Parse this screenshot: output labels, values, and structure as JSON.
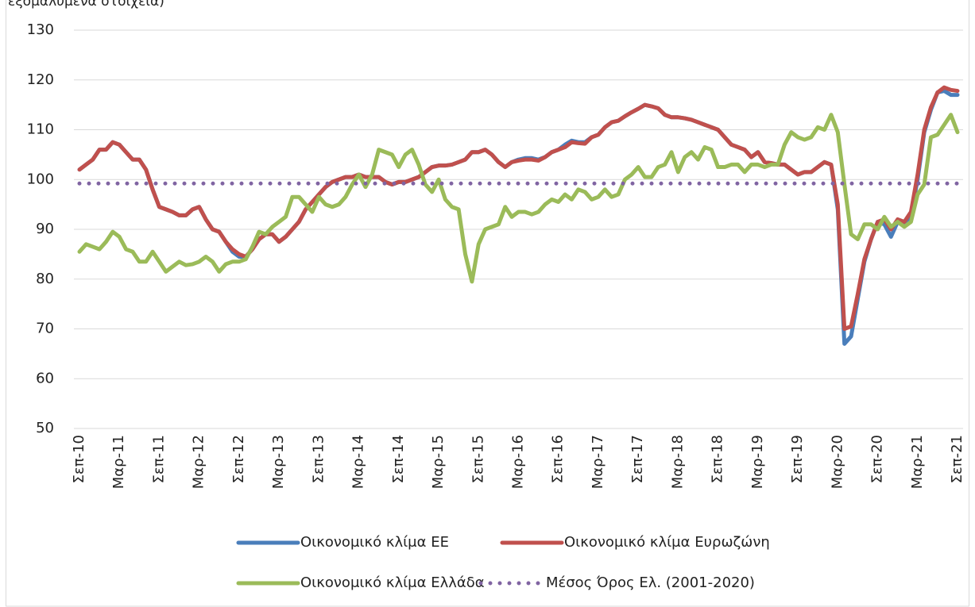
{
  "chart_data": {
    "type": "line",
    "title": "εξομαλυμένα στοιχεία)",
    "categories": [
      "Σεπ-10",
      null,
      null,
      null,
      null,
      null,
      "Μαρ-11",
      null,
      null,
      null,
      null,
      null,
      "Σεπ-11",
      null,
      null,
      null,
      null,
      null,
      "Μαρ-12",
      null,
      null,
      null,
      null,
      null,
      "Σεπ-12",
      null,
      null,
      null,
      null,
      null,
      "Μαρ-13",
      null,
      null,
      null,
      null,
      null,
      "Σεπ-13",
      null,
      null,
      null,
      null,
      null,
      "Μαρ-14",
      null,
      null,
      null,
      null,
      null,
      "Σεπ-14",
      null,
      null,
      null,
      null,
      null,
      "Μαρ-15",
      null,
      null,
      null,
      null,
      null,
      "Σεπ-15",
      null,
      null,
      null,
      null,
      null,
      "Μαρ-16",
      null,
      null,
      null,
      null,
      null,
      "Σεπ-16",
      null,
      null,
      null,
      null,
      null,
      "Μαρ-17",
      null,
      null,
      null,
      null,
      null,
      "Σεπ-17",
      null,
      null,
      null,
      null,
      null,
      "Μαρ-18",
      null,
      null,
      null,
      null,
      null,
      "Σεπ-18",
      null,
      null,
      null,
      null,
      null,
      "Μαρ-19",
      null,
      null,
      null,
      null,
      null,
      "Σεπ-19",
      null,
      null,
      null,
      null,
      null,
      "Μαρ-20",
      null,
      null,
      null,
      null,
      null,
      "Σεπ-20",
      null,
      null,
      null,
      null,
      null,
      "Μαρ-21",
      null,
      null,
      null,
      null,
      null,
      "Σεπ-21"
    ],
    "series": [
      {
        "name": "Οικονομικό κλίμα ΕΕ",
        "color": "#4a7ebb",
        "style": "solid",
        "values": [
          102,
          103,
          104,
          106,
          106,
          107.5,
          107,
          105.5,
          104,
          104,
          102,
          98,
          94.5,
          94,
          93.5,
          92.8,
          92.8,
          94,
          94.5,
          92,
          90,
          89.5,
          87.5,
          85.5,
          84.5,
          84.5,
          86,
          88,
          89,
          89,
          87.5,
          88.5,
          90,
          91.5,
          94,
          95.5,
          97,
          98.5,
          99.5,
          100,
          100.5,
          100.5,
          101,
          100.5,
          100.5,
          100.5,
          99.5,
          99,
          99.5,
          99.5,
          100,
          100.5,
          101.5,
          102.5,
          102.8,
          102.8,
          103,
          103.5,
          104,
          105.5,
          105.5,
          106,
          105,
          103.5,
          102.5,
          103.5,
          104,
          104.3,
          104.3,
          104,
          104.5,
          105.5,
          106,
          107,
          107.8,
          107.5,
          107.5,
          108.5,
          109,
          110.5,
          111.5,
          111.8,
          112.7,
          113.5,
          114.2,
          115,
          114.7,
          114.3,
          113,
          112.5,
          112.5,
          112.3,
          112,
          111.5,
          111,
          110.5,
          110,
          108.5,
          107,
          106.5,
          106,
          104.5,
          105.5,
          103.5,
          103.3,
          103,
          103,
          102,
          101,
          101.5,
          101.5,
          102.5,
          103.5,
          103,
          94,
          67,
          68.5,
          76,
          83.5,
          88,
          91.5,
          91,
          88.5,
          91.5,
          91,
          92.8,
          100,
          109.5,
          114,
          117.5,
          117.8,
          117,
          117
        ]
      },
      {
        "name": "Οικονομικό κλίμα Ευρωζώνη",
        "color": "#c0504d",
        "style": "solid",
        "values": [
          102,
          103,
          104,
          106,
          106,
          107.5,
          107,
          105.5,
          104,
          104,
          102,
          98,
          94.5,
          94,
          93.5,
          92.8,
          92.8,
          94,
          94.5,
          92,
          90,
          89.5,
          87.5,
          86,
          85,
          84.5,
          86,
          88,
          89,
          89,
          87.5,
          88.5,
          90,
          91.5,
          94,
          95.5,
          97,
          98.5,
          99.5,
          100,
          100.5,
          100.5,
          101,
          100.5,
          100.5,
          100.5,
          99.5,
          99,
          99.5,
          99.5,
          100,
          100.5,
          101.5,
          102.5,
          102.8,
          102.8,
          103,
          103.5,
          104,
          105.5,
          105.5,
          106,
          105,
          103.5,
          102.5,
          103.5,
          103.8,
          104,
          104,
          103.8,
          104.5,
          105.5,
          106,
          106.5,
          107.5,
          107.3,
          107.2,
          108.5,
          109,
          110.5,
          111.5,
          111.8,
          112.7,
          113.5,
          114.2,
          115,
          114.7,
          114.3,
          113,
          112.5,
          112.5,
          112.3,
          112,
          111.5,
          111,
          110.5,
          110,
          108.5,
          107,
          106.5,
          106,
          104.5,
          105.5,
          103.5,
          103.3,
          103,
          103,
          102,
          101,
          101.5,
          101.5,
          102.5,
          103.5,
          103,
          95,
          70,
          70.5,
          77,
          84,
          88,
          91.5,
          92,
          90,
          92,
          91.5,
          93.5,
          101,
          110,
          114.5,
          117.5,
          118.5,
          118,
          117.8
        ]
      },
      {
        "name": "Οικονομικό κλίμα Ελλάδα",
        "color": "#9bbb59",
        "style": "solid",
        "values": [
          85.5,
          87,
          86.5,
          86,
          87.5,
          89.5,
          88.5,
          86,
          85.5,
          83.5,
          83.5,
          85.5,
          83.5,
          81.5,
          82.5,
          83.5,
          82.8,
          83,
          83.5,
          84.5,
          83.5,
          81.5,
          83,
          83.5,
          83.5,
          84,
          86.5,
          89.5,
          89,
          90.5,
          91.5,
          92.5,
          96.5,
          96.5,
          95,
          93.5,
          96.5,
          95,
          94.5,
          95,
          96.5,
          99,
          101,
          98.5,
          101,
          106,
          105.5,
          105,
          102.5,
          105,
          106,
          103,
          99,
          97.5,
          100,
          96,
          94.5,
          94,
          85,
          79.5,
          87,
          90,
          90.5,
          91,
          94.5,
          92.5,
          93.5,
          93.5,
          93,
          93.5,
          95,
          96,
          95.5,
          97,
          96,
          98,
          97.5,
          96,
          96.5,
          98,
          96.5,
          97,
          100,
          101,
          102.5,
          100.5,
          100.5,
          102.5,
          103,
          105.5,
          101.5,
          104.5,
          105.5,
          104,
          106.5,
          106,
          102.5,
          102.5,
          103,
          103,
          101.5,
          103,
          103,
          102.5,
          103,
          103,
          107,
          109.5,
          108.5,
          108,
          108.5,
          110.5,
          110,
          113,
          109.5,
          99,
          89,
          88,
          91,
          91,
          90,
          92.5,
          90.5,
          91.5,
          90.5,
          91.5,
          97,
          99,
          108.5,
          109,
          111,
          113,
          109.5
        ]
      },
      {
        "name": "Μέσος Όρος Ελ. (2001-2020)",
        "color": "#8064a2",
        "style": "dotted",
        "values": [
          99.2,
          99.2,
          99.2,
          99.2,
          99.2,
          99.2,
          99.2,
          99.2,
          99.2,
          99.2,
          99.2,
          99.2,
          99.2,
          99.2,
          99.2,
          99.2,
          99.2,
          99.2,
          99.2,
          99.2,
          99.2,
          99.2,
          99.2,
          99.2,
          99.2,
          99.2,
          99.2,
          99.2,
          99.2,
          99.2,
          99.2,
          99.2,
          99.2,
          99.2,
          99.2,
          99.2,
          99.2,
          99.2,
          99.2,
          99.2,
          99.2,
          99.2,
          99.2,
          99.2,
          99.2,
          99.2,
          99.2,
          99.2,
          99.2,
          99.2,
          99.2,
          99.2,
          99.2,
          99.2,
          99.2,
          99.2,
          99.2,
          99.2,
          99.2,
          99.2,
          99.2,
          99.2,
          99.2,
          99.2,
          99.2,
          99.2,
          99.2,
          99.2,
          99.2,
          99.2,
          99.2,
          99.2,
          99.2,
          99.2,
          99.2,
          99.2,
          99.2,
          99.2,
          99.2,
          99.2,
          99.2,
          99.2,
          99.2,
          99.2,
          99.2,
          99.2,
          99.2,
          99.2,
          99.2,
          99.2,
          99.2,
          99.2,
          99.2,
          99.2,
          99.2,
          99.2,
          99.2,
          99.2,
          99.2,
          99.2,
          99.2,
          99.2,
          99.2,
          99.2,
          99.2,
          99.2,
          99.2,
          99.2,
          99.2,
          99.2,
          99.2,
          99.2,
          99.2,
          99.2,
          99.2,
          99.2,
          99.2,
          99.2,
          99.2,
          99.2,
          99.2,
          99.2,
          99.2,
          99.2,
          99.2,
          99.2,
          99.2,
          99.2,
          99.2,
          99.2,
          99.2,
          99.2,
          99.2
        ]
      }
    ],
    "ylim": [
      50,
      130
    ],
    "yticks": [
      50,
      60,
      70,
      80,
      90,
      100,
      110,
      120,
      130
    ],
    "grid": true
  }
}
